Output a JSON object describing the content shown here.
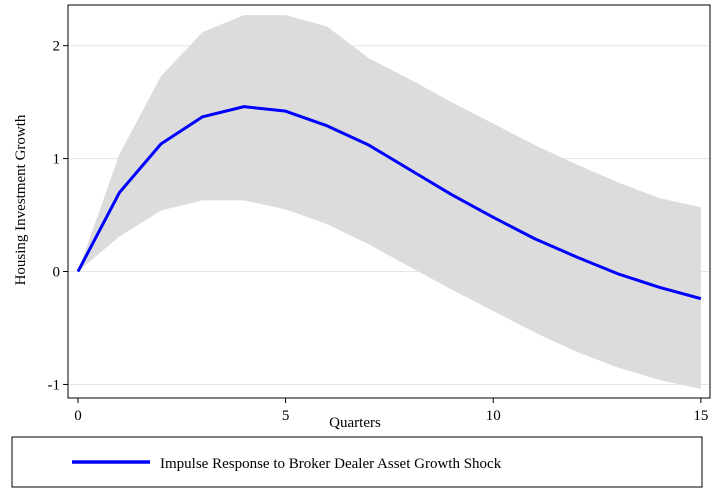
{
  "chart_data": {
    "type": "line",
    "x": [
      0,
      1,
      2,
      3,
      4,
      5,
      6,
      7,
      8,
      9,
      10,
      11,
      12,
      13,
      14,
      15
    ],
    "series": [
      {
        "name": "Impulse Response to Broker Dealer Asset Growth Shock",
        "color": "#0000ff",
        "values": [
          0,
          0.7,
          1.13,
          1.37,
          1.46,
          1.42,
          1.29,
          1.12,
          0.9,
          0.68,
          0.48,
          0.29,
          0.13,
          -0.02,
          -0.14,
          -0.24
        ]
      }
    ],
    "band": {
      "color": "#dcdcdc",
      "upper": [
        0,
        1.04,
        1.73,
        2.12,
        2.27,
        2.27,
        2.17,
        1.89,
        1.7,
        1.5,
        1.31,
        1.12,
        0.95,
        0.79,
        0.65,
        0.57
      ],
      "lower": [
        0,
        0.31,
        0.54,
        0.63,
        0.63,
        0.55,
        0.42,
        0.24,
        0.04,
        -0.16,
        -0.35,
        -0.54,
        -0.71,
        -0.85,
        -0.96,
        -1.04
      ]
    },
    "xlabel": "Quarters",
    "ylabel": "Housing Investment Growth",
    "xlim": [
      -0.24,
      15.22
    ],
    "ylim": [
      -1.12,
      2.36
    ],
    "xticks": [
      0,
      5,
      10,
      15
    ],
    "yticks": [
      -1,
      0,
      1,
      2
    ],
    "grid": true,
    "legend": "bottom"
  }
}
